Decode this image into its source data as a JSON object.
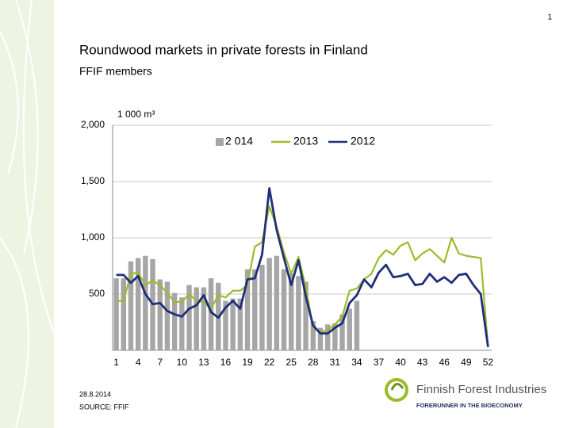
{
  "slide": {
    "page_number": "1",
    "title": "Roundwood markets in private forests in Finland",
    "subtitle": "FFIF members",
    "date": "28.8.2014",
    "source": "SOURCE: FFIF",
    "logo_name": "Finnish Forest Industries",
    "logo_tagline": "FORERUNNER IN THE BIOECONOMY"
  },
  "chart_data": {
    "type": "bar",
    "y_label": "1 000 m³",
    "categories": [
      "1",
      null,
      null,
      "4",
      null,
      null,
      "7",
      null,
      null,
      "10",
      null,
      null,
      "13",
      null,
      null,
      "16",
      null,
      null,
      "19",
      null,
      null,
      "22",
      null,
      null,
      "25",
      null,
      null,
      "28",
      null,
      null,
      "31",
      null,
      null,
      "34",
      null,
      null,
      "37",
      null,
      null,
      "40",
      null,
      null,
      "43",
      null,
      null,
      "46",
      null,
      null,
      "49",
      null,
      null,
      "52"
    ],
    "series": [
      {
        "name": "2 014",
        "type": "bar",
        "color": "#a6a6a6",
        "values": [
          640,
          640,
          790,
          820,
          840,
          810,
          630,
          610,
          510,
          470,
          580,
          560,
          560,
          640,
          600,
          440,
          460,
          460,
          720,
          720,
          760,
          820,
          840,
          720,
          680,
          660,
          610,
          260,
          200,
          230,
          240,
          320,
          370,
          440,
          null,
          null,
          null,
          null,
          null,
          null,
          null,
          null,
          null,
          null,
          null,
          null,
          null,
          null,
          null,
          null,
          null,
          null
        ]
      },
      {
        "name": "2013",
        "type": "line",
        "color": "#9bbb2a",
        "values": [
          440,
          440,
          680,
          690,
          580,
          620,
          580,
          510,
          430,
          430,
          500,
          440,
          430,
          370,
          490,
          470,
          530,
          530,
          580,
          920,
          960,
          1280,
          1100,
          870,
          680,
          830,
          560,
          200,
          160,
          180,
          230,
          300,
          530,
          550,
          630,
          680,
          820,
          890,
          850,
          930,
          960,
          800,
          860,
          900,
          840,
          780,
          1000,
          860,
          840,
          830,
          820,
          30
        ]
      },
      {
        "name": "2012",
        "type": "line",
        "color": "#1f2f7a",
        "values": [
          670,
          670,
          600,
          660,
          500,
          410,
          420,
          350,
          320,
          300,
          370,
          400,
          490,
          340,
          290,
          380,
          440,
          370,
          630,
          640,
          850,
          1440,
          1070,
          820,
          580,
          800,
          480,
          220,
          150,
          150,
          200,
          240,
          420,
          490,
          630,
          560,
          690,
          760,
          650,
          660,
          680,
          580,
          590,
          680,
          610,
          650,
          600,
          670,
          680,
          580,
          500,
          30
        ]
      }
    ],
    "ylim": [
      0,
      2000
    ],
    "yticks": [
      500,
      {
        "value": 1000,
        "label": "1,000"
      },
      {
        "value": 1500,
        "label": "1,500"
      },
      {
        "value": 2000,
        "label": "2,000"
      }
    ],
    "grid": true,
    "legend": "top"
  }
}
